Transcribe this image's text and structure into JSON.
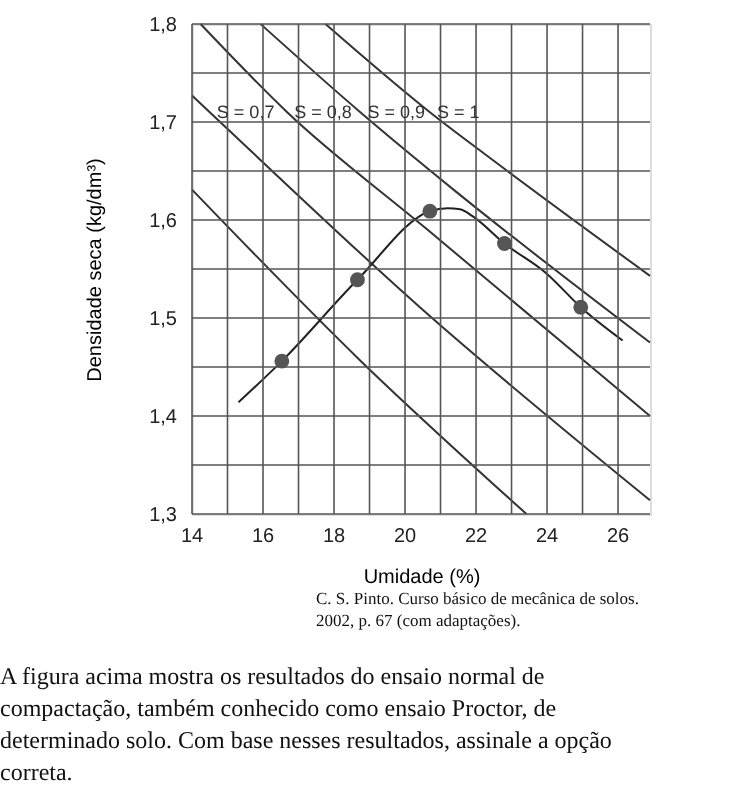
{
  "chart_data": {
    "type": "line",
    "xlabel": "Umidade (%)",
    "ylabel": "Densidade seca (kg/dm³)",
    "xlim": [
      14,
      26.9
    ],
    "ylim": [
      1.3,
      1.8
    ],
    "xticks": [
      14,
      {
        "value": 15,
        "label": null
      },
      16,
      {
        "value": 17,
        "label": null
      },
      18,
      {
        "value": 19,
        "label": null
      },
      20,
      {
        "value": 21,
        "label": null
      },
      22,
      {
        "value": 23,
        "label": null
      },
      24,
      {
        "value": 25,
        "label": null
      },
      26
    ],
    "yticks": [
      {
        "value": 1.3,
        "label": "1,3"
      },
      {
        "value": 1.35,
        "label": null
      },
      {
        "value": 1.4,
        "label": "1,4"
      },
      {
        "value": 1.45,
        "label": null
      },
      {
        "value": 1.5,
        "label": "1,5"
      },
      {
        "value": 1.55,
        "label": null
      },
      {
        "value": 1.6,
        "label": "1,6"
      },
      {
        "value": 1.65,
        "label": null
      },
      {
        "value": 1.7,
        "label": "1,7"
      },
      {
        "value": 1.75,
        "label": null
      },
      {
        "value": 1.8,
        "label": "1,8"
      }
    ],
    "grid": true,
    "series": [
      {
        "color": "#333333",
        "line_style": "solid",
        "x": [
          14,
          18.7,
          23.42
        ],
        "values": [
          1.631,
          1.458,
          1.3
        ]
      },
      {
        "color": "#333333",
        "line_style": "solid",
        "x": [
          14,
          14.5,
          20.45,
          26.9
        ],
        "values": [
          1.727,
          1.71,
          1.51,
          1.314
        ]
      },
      {
        "color": "#333333",
        "line_style": "solid",
        "x": [
          14.24,
          16.68,
          20.57,
          26.9
        ],
        "values": [
          1.8,
          1.71,
          1.592,
          1.4
        ]
      },
      {
        "color": "#333333",
        "line_style": "solid",
        "x": [
          15.93,
          18.74,
          21.4,
          26.9
        ],
        "values": [
          1.8,
          1.71,
          1.63,
          1.475
        ]
      },
      {
        "color": "#333333",
        "line_style": "solid",
        "x": [
          17.76,
          20.7,
          22.33,
          26.9
        ],
        "values": [
          1.8,
          1.71,
          1.665,
          1.543
        ]
      },
      {
        "color": "#222222",
        "line_style": "solid",
        "marker": "none",
        "x": [
          15.31,
          16.53,
          18.66,
          20.7,
          21.2,
          21.55,
          21.9,
          22.8,
          24.0,
          24.95,
          26.13
        ],
        "values": [
          1.414,
          1.456,
          1.539,
          1.609,
          1.612,
          1.611,
          1.604,
          1.576,
          1.545,
          1.511,
          1.477
        ]
      },
      {
        "type": "scatter",
        "color": "#555555",
        "marker": "circle",
        "x": [
          16.53,
          18.66,
          20.7,
          22.8,
          24.95
        ],
        "values": [
          1.456,
          1.539,
          1.609,
          1.576,
          1.511
        ]
      }
    ],
    "annotations": [
      {
        "text": "S = 0,7",
        "x": 14.7,
        "y": 1.71
      },
      {
        "text": "S = 0,8",
        "x": 16.88,
        "y": 1.71
      },
      {
        "text": "S = 0,9",
        "x": 18.94,
        "y": 1.71
      },
      {
        "text": "S = 1",
        "x": 20.9,
        "y": 1.71
      },
      "C. S. Pinto. Curso básico de mecânica de solos.\n2002, p. 67 (com adaptações).",
      "A figura acima mostra os resultados do ensaio normal de\ncompactação, também conhecido como ensaio Proctor, de\ndeterminado solo. Com base nesses resultados, assinale a opção\ncorreta."
    ]
  }
}
